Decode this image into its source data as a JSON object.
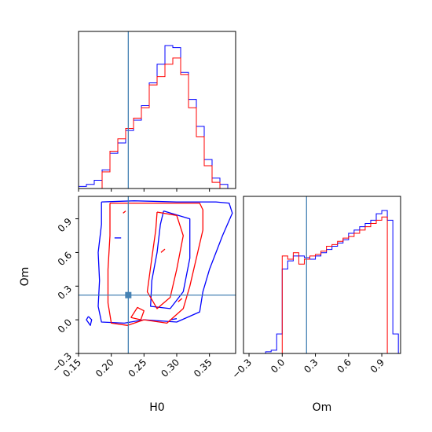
{
  "chart_data": [
    {
      "type": "histogram",
      "panel": "H0 marginal",
      "xlim": [
        0.15,
        0.39
      ],
      "truth": 0.226,
      "bins": [
        0.15,
        0.162,
        0.174,
        0.186,
        0.198,
        0.21,
        0.222,
        0.234,
        0.246,
        0.258,
        0.27,
        0.282,
        0.294,
        0.306,
        0.318,
        0.33,
        0.342,
        0.354,
        0.366,
        0.378,
        0.39
      ],
      "series": [
        {
          "color": "#0000ff",
          "values": [
            1,
            2,
            4,
            9,
            17,
            22,
            28,
            33,
            40,
            51,
            60,
            69,
            68,
            56,
            43,
            30,
            14,
            5,
            2,
            0
          ]
        },
        {
          "color": "#ff0000",
          "values": [
            0,
            0,
            0,
            8,
            18,
            24,
            29,
            34,
            39,
            50,
            54,
            60,
            63,
            55,
            39,
            25,
            11,
            3,
            0,
            0
          ]
        }
      ],
      "xticks": [
        "0.15",
        "0.20",
        "0.25",
        "0.30",
        "0.35"
      ]
    },
    {
      "type": "contour",
      "panel": "H0 vs Om",
      "xlabel": "H0",
      "ylabel": "Om",
      "xlim": [
        0.15,
        0.39
      ],
      "ylim": [
        -0.3,
        1.1
      ],
      "truth": [
        0.226,
        0.22
      ],
      "xticks": [
        "0.15",
        "0.20",
        "0.25",
        "0.30",
        "0.35"
      ],
      "yticks": [
        "−0.3",
        "0.0",
        "0.3",
        "0.6",
        "0.9"
      ],
      "series": [
        {
          "color": "#0000ff",
          "contours": [
            [
              [
                0.185,
                1.05
              ],
              [
                0.235,
                1.06
              ],
              [
                0.3,
                1.05
              ],
              [
                0.36,
                1.05
              ],
              [
                0.38,
                1.04
              ],
              [
                0.385,
                0.95
              ],
              [
                0.37,
                0.75
              ],
              [
                0.35,
                0.45
              ],
              [
                0.34,
                0.25
              ],
              [
                0.335,
                0.07
              ],
              [
                0.3,
                -0.02
              ],
              [
                0.25,
                0.0
              ],
              [
                0.22,
                -0.03
              ],
              [
                0.185,
                -0.02
              ],
              [
                0.18,
                0.12
              ],
              [
                0.182,
                0.35
              ],
              [
                0.18,
                0.6
              ],
              [
                0.185,
                0.85
              ],
              [
                0.185,
                1.05
              ]
            ],
            [
              [
                0.28,
                0.97
              ],
              [
                0.32,
                0.9
              ],
              [
                0.32,
                0.55
              ],
              [
                0.31,
                0.25
              ],
              [
                0.29,
                0.1
              ],
              [
                0.26,
                0.12
              ],
              [
                0.262,
                0.35
              ],
              [
                0.27,
                0.6
              ],
              [
                0.275,
                0.85
              ],
              [
                0.28,
                0.97
              ]
            ],
            [
              [
                0.165,
                0.03
              ],
              [
                0.17,
                0.0
              ],
              [
                0.168,
                -0.05
              ],
              [
                0.162,
                0.0
              ],
              [
                0.165,
                0.03
              ]
            ],
            [
              [
                0.205,
                0.73
              ],
              [
                0.215,
                0.73
              ]
            ],
            [
              [
                0.29,
                0.0
              ],
              [
                0.3,
                0.01
              ]
            ]
          ]
        },
        {
          "color": "#ff0000",
          "contours": [
            [
              [
                0.198,
                1.04
              ],
              [
                0.25,
                1.04
              ],
              [
                0.3,
                1.04
              ],
              [
                0.335,
                1.04
              ],
              [
                0.34,
                0.98
              ],
              [
                0.34,
                0.8
              ],
              [
                0.33,
                0.55
              ],
              [
                0.32,
                0.3
              ],
              [
                0.31,
                0.1
              ],
              [
                0.285,
                -0.03
              ],
              [
                0.25,
                0.0
              ],
              [
                0.225,
                -0.05
              ],
              [
                0.2,
                -0.03
              ],
              [
                0.195,
                0.15
              ],
              [
                0.195,
                0.45
              ],
              [
                0.198,
                0.75
              ],
              [
                0.198,
                1.04
              ]
            ],
            [
              [
                0.27,
                0.96
              ],
              [
                0.3,
                0.93
              ],
              [
                0.31,
                0.75
              ],
              [
                0.3,
                0.45
              ],
              [
                0.29,
                0.2
              ],
              [
                0.27,
                0.1
              ],
              [
                0.255,
                0.25
              ],
              [
                0.262,
                0.55
              ],
              [
                0.268,
                0.8
              ],
              [
                0.27,
                0.96
              ]
            ],
            [
              [
                0.23,
                0.02
              ],
              [
                0.245,
                0.0
              ],
              [
                0.25,
                0.08
              ],
              [
                0.24,
                0.11
              ],
              [
                0.23,
                0.02
              ]
            ],
            [
              [
                0.276,
                0.6
              ],
              [
                0.282,
                0.63
              ]
            ],
            [
              [
                0.302,
                0.16
              ],
              [
                0.308,
                0.19
              ]
            ],
            [
              [
                0.218,
                0.95
              ],
              [
                0.222,
                0.97
              ]
            ]
          ]
        }
      ]
    },
    {
      "type": "histogram",
      "panel": "Om marginal",
      "xlim": [
        -0.35,
        1.07
      ],
      "truth": 0.22,
      "bins": [
        -0.35,
        -0.3,
        -0.25,
        -0.2,
        -0.15,
        -0.1,
        -0.05,
        0.0,
        0.05,
        0.1,
        0.15,
        0.2,
        0.25,
        0.3,
        0.35,
        0.4,
        0.45,
        0.5,
        0.55,
        0.6,
        0.65,
        0.7,
        0.75,
        0.8,
        0.85,
        0.9,
        0.95,
        1.0,
        1.05
      ],
      "series": [
        {
          "color": "#0000ff",
          "values": [
            0,
            0,
            0,
            0,
            1,
            2,
            12,
            52,
            57,
            60,
            60,
            59,
            58,
            60,
            62,
            64,
            66,
            68,
            70,
            74,
            76,
            78,
            80,
            82,
            86,
            88,
            82,
            12
          ]
        },
        {
          "color": "#ff0000",
          "values": [
            0,
            0,
            0,
            0,
            0,
            0,
            0,
            60,
            58,
            62,
            55,
            58,
            60,
            61,
            63,
            66,
            67,
            69,
            71,
            72,
            74,
            76,
            78,
            80,
            82,
            84,
            0,
            0
          ]
        }
      ],
      "xlabel": "Om",
      "xticks": [
        "−0.3",
        "0.0",
        "0.3",
        "0.6",
        "0.9"
      ]
    }
  ],
  "labels": {
    "h0": "H0",
    "om_y": "Om",
    "om_x": "Om"
  },
  "colors": {
    "truth": "#4682b4",
    "blue": "#0000ff",
    "red": "#ff0000"
  }
}
